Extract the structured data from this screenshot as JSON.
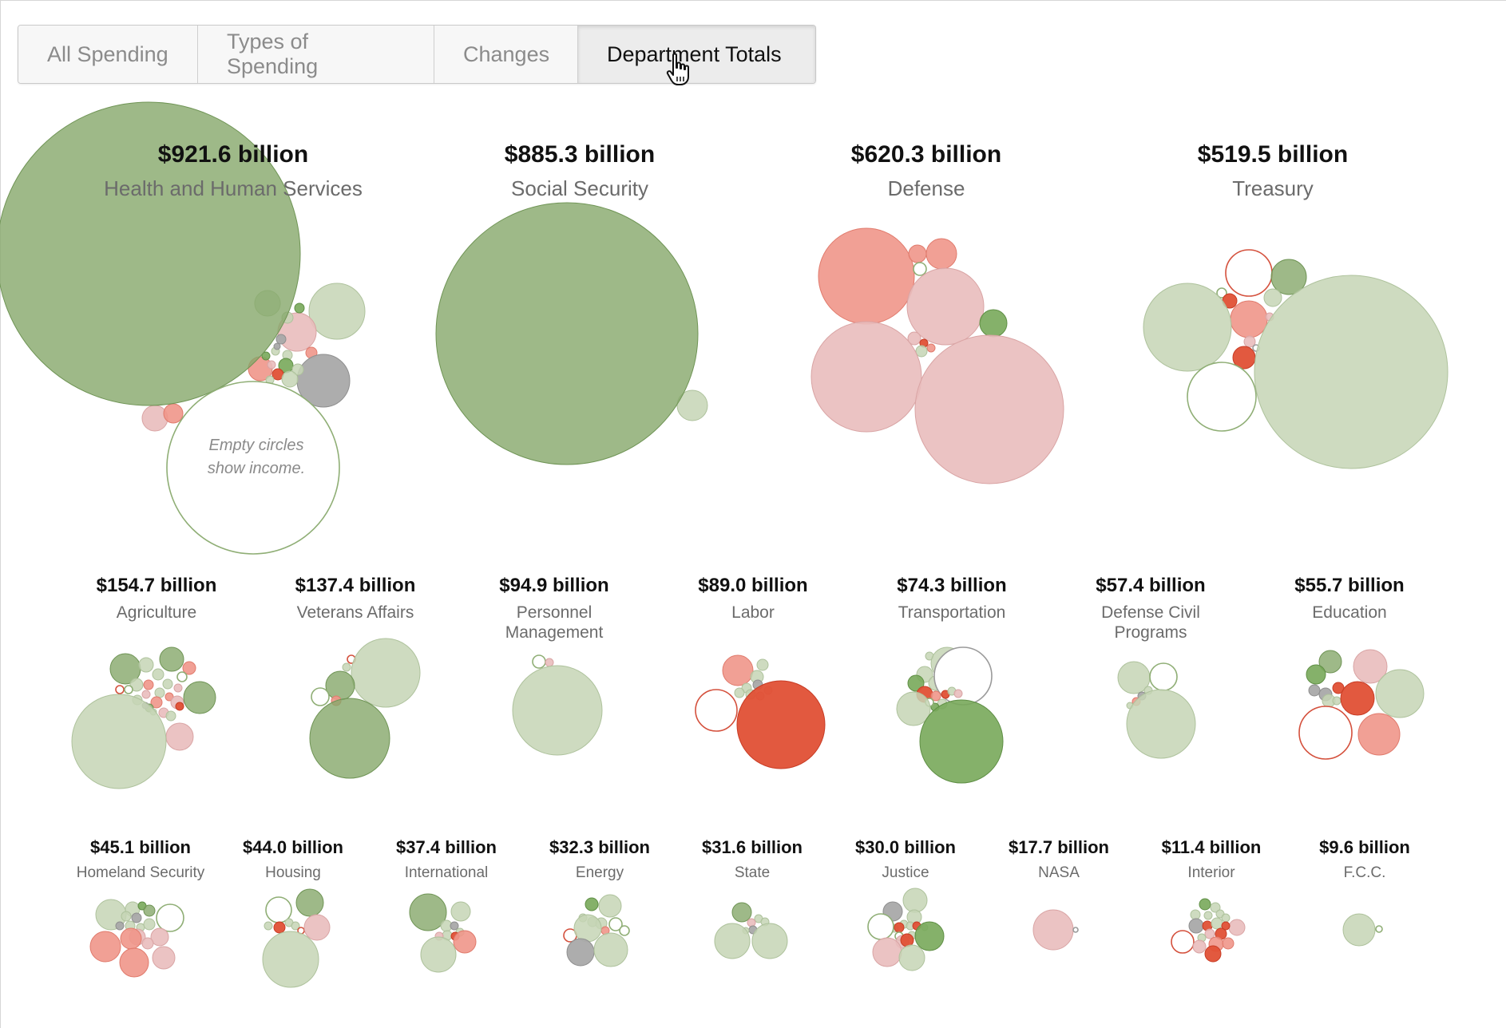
{
  "tabs": [
    {
      "label": "All Spending",
      "active": false
    },
    {
      "label": "Types of Spending",
      "active": false
    },
    {
      "label": "Changes",
      "active": false
    },
    {
      "label": "Department Totals",
      "active": true
    }
  ],
  "cursor_icon": "hand-pointer-icon",
  "colors": {
    "dark_green": "#86a86a",
    "light_green": "#c5d5b5",
    "green": "#78a85a",
    "red": "#e05035",
    "salmon": "#f0968a",
    "pink": "#e9bcbc",
    "gray": "#a9a9a9",
    "income_outline": "#8fae75"
  },
  "annotation": {
    "line1": "Empty circles",
    "line2": "show income."
  },
  "chart_data": {
    "type": "bubble",
    "title": "",
    "departments": [
      {
        "amount": "$921.6 billion",
        "name": "Health and Human Services",
        "value": 921.6
      },
      {
        "amount": "$885.3 billion",
        "name": "Social Security",
        "value": 885.3
      },
      {
        "amount": "$620.3 billion",
        "name": "Defense",
        "value": 620.3
      },
      {
        "amount": "$519.5 billion",
        "name": "Treasury",
        "value": 519.5
      },
      {
        "amount": "$154.7 billion",
        "name": "Agriculture",
        "value": 154.7
      },
      {
        "amount": "$137.4 billion",
        "name": "Veterans Affairs",
        "value": 137.4
      },
      {
        "amount": "$94.9 billion",
        "name": "Personnel Management",
        "value": 94.9
      },
      {
        "amount": "$89.0 billion",
        "name": "Labor",
        "value": 89.0
      },
      {
        "amount": "$74.3 billion",
        "name": "Transportation",
        "value": 74.3
      },
      {
        "amount": "$57.4 billion",
        "name": "Defense Civil Programs",
        "value": 57.4
      },
      {
        "amount": "$55.7 billion",
        "name": "Education",
        "value": 55.7
      },
      {
        "amount": "$45.1 billion",
        "name": "Homeland Security",
        "value": 45.1
      },
      {
        "amount": "$44.0 billion",
        "name": "Housing",
        "value": 44.0
      },
      {
        "amount": "$37.4 billion",
        "name": "International",
        "value": 37.4
      },
      {
        "amount": "$32.3 billion",
        "name": "Energy",
        "value": 32.3
      },
      {
        "amount": "$31.6 billion",
        "name": "State",
        "value": 31.6
      },
      {
        "amount": "$30.0 billion",
        "name": "Justice",
        "value": 30.0
      },
      {
        "amount": "$17.7 billion",
        "name": "NASA",
        "value": 17.7
      },
      {
        "amount": "$11.4 billion",
        "name": "Interior",
        "value": 11.4
      },
      {
        "amount": "$9.6 billion",
        "name": "F.C.C.",
        "value": 9.6
      }
    ]
  }
}
